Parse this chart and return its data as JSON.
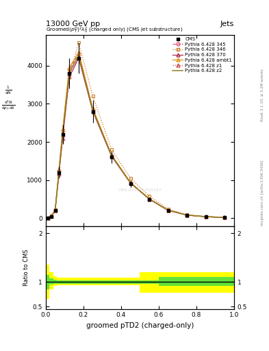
{
  "title_top": "13000 GeV pp",
  "title_right": "Jets",
  "plot_title": "Groomed$(p_T^D)^2\\lambda_0^2$ (charged only) (CMS jet substructure)",
  "xlabel": "groomed pTD2 (charged-only)",
  "ylabel_ratio": "Ratio to CMS",
  "right_label": "mcplots.cern.ch [arXiv:1306.3436]",
  "rivet_label": "Rivet 3.1.10, ≥ 3.2M events",
  "watermark": "CMS-2020-J1920187",
  "x_bins": [
    0.0,
    0.02,
    0.04,
    0.06,
    0.08,
    0.1,
    0.15,
    0.2,
    0.3,
    0.4,
    0.5,
    0.6,
    0.7,
    0.8,
    0.9,
    1.0
  ],
  "cms_y": [
    10,
    50,
    200,
    1200,
    2200,
    3800,
    4200,
    2800,
    1600,
    900,
    500,
    200,
    80,
    40,
    20
  ],
  "cms_yerr": [
    2,
    10,
    30,
    150,
    250,
    400,
    400,
    300,
    150,
    90,
    50,
    25,
    10,
    5,
    3
  ],
  "py345_y": [
    12,
    60,
    220,
    1250,
    2300,
    3900,
    4300,
    2850,
    1650,
    930,
    510,
    210,
    85,
    42,
    22
  ],
  "py346_y": [
    12,
    60,
    220,
    1200,
    2200,
    3700,
    4600,
    3200,
    1800,
    1050,
    580,
    240,
    95,
    48,
    25
  ],
  "py370_y": [
    10,
    55,
    200,
    1150,
    2100,
    3700,
    4200,
    2800,
    1620,
    920,
    500,
    205,
    82,
    41,
    21
  ],
  "pyambt1_y": [
    12,
    62,
    225,
    1270,
    2320,
    3950,
    4350,
    2880,
    1660,
    940,
    515,
    212,
    86,
    43,
    22
  ],
  "pyz1_y": [
    10,
    55,
    205,
    1180,
    2180,
    3780,
    4230,
    2820,
    1640,
    925,
    505,
    208,
    83,
    41,
    21
  ],
  "pyz2_y": [
    11,
    58,
    210,
    1200,
    2200,
    3820,
    4270,
    2840,
    1645,
    928,
    507,
    210,
    84,
    42,
    22
  ],
  "colors": {
    "cms": "#000000",
    "py345": "#e05878",
    "py346": "#c87820",
    "py370": "#b02850",
    "pyambt1": "#e09010",
    "pyz1": "#c84040",
    "pyz2": "#908020"
  },
  "ratio_green_lo": [
    0.85,
    0.95,
    0.97,
    0.97,
    0.97,
    0.97,
    0.97,
    0.97,
    0.97,
    0.97,
    0.97,
    0.92,
    0.92,
    0.92,
    0.92
  ],
  "ratio_green_hi": [
    1.15,
    1.08,
    1.05,
    1.04,
    1.04,
    1.04,
    1.04,
    1.04,
    1.04,
    1.04,
    1.04,
    1.1,
    1.1,
    1.1,
    1.1
  ],
  "ratio_yellow_lo": [
    0.65,
    0.85,
    0.92,
    0.94,
    0.94,
    0.94,
    0.94,
    0.94,
    0.94,
    0.94,
    0.78,
    0.78,
    0.78,
    0.78,
    0.78
  ],
  "ratio_yellow_hi": [
    1.35,
    1.2,
    1.12,
    1.09,
    1.09,
    1.09,
    1.09,
    1.09,
    1.09,
    1.09,
    1.2,
    1.2,
    1.2,
    1.2,
    1.2
  ],
  "yticks_main": [
    0,
    1000,
    2000,
    3000,
    4000
  ],
  "ylim_main": [
    -200,
    4800
  ],
  "xlim": [
    0.0,
    1.0
  ]
}
